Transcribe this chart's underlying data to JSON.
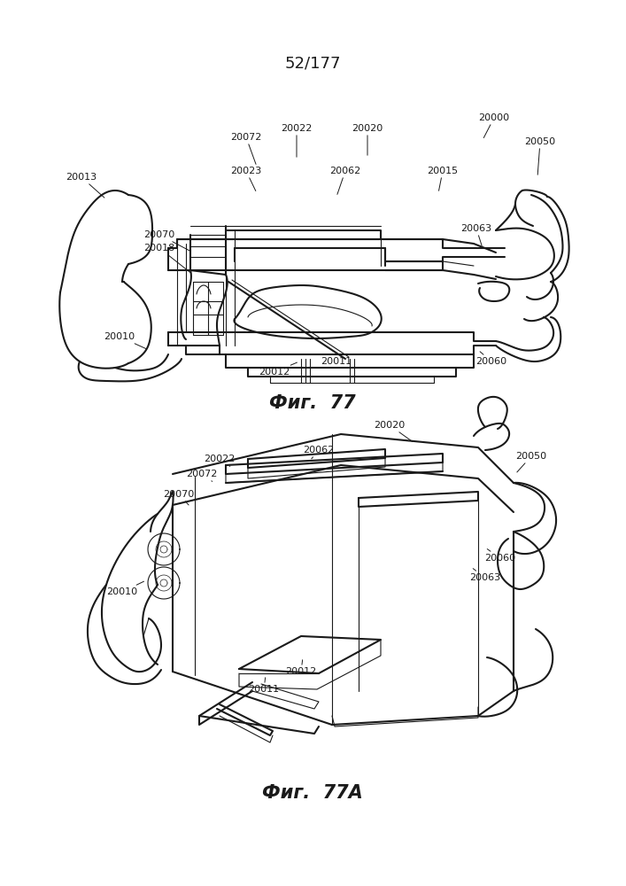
{
  "title": "52/177",
  "title_fontsize": 13,
  "fig1_label": "Фиг.  77",
  "fig2_label": "Фиг.  77А",
  "label_fontsize": 15,
  "background_color": "#ffffff",
  "line_color": "#1a1a1a"
}
